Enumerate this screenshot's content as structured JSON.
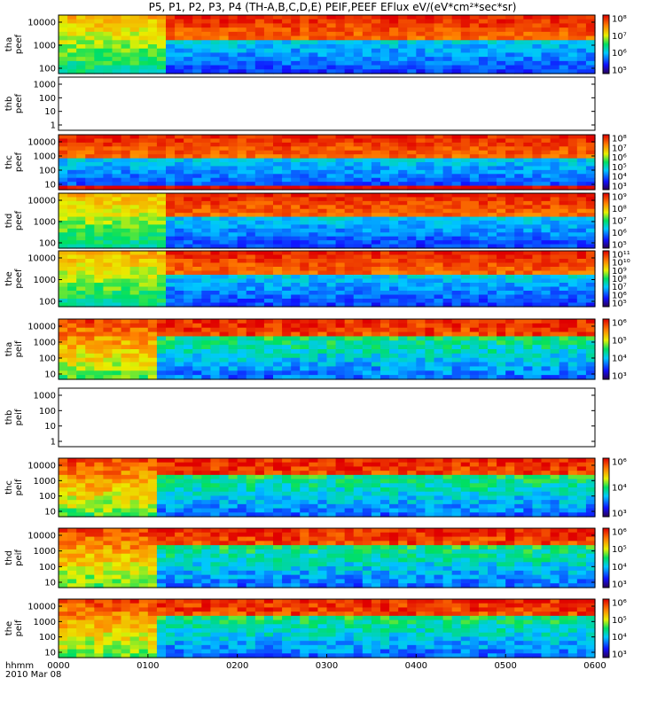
{
  "title": "P5, P1, P2, P3, P4 (TH-A,B,C,D,E) PEIF,PEEF EFlux eV/(eV*cm²*sec*sr)",
  "footer": {
    "time_label": "hhmm",
    "date_label": "2010 Mar 08"
  },
  "chart_data": {
    "type": "heatmap",
    "x_axis": {
      "label": "hhmm",
      "ticks": [
        "0000",
        "0100",
        "0200",
        "0300",
        "0400",
        "0500",
        "0600"
      ],
      "range": [
        "0000",
        "0600"
      ]
    },
    "panels": [
      {
        "name": "tha_peef",
        "ylabel": [
          "tha",
          "peef"
        ],
        "yticks": [
          "10000",
          "1000",
          "100"
        ],
        "colorbar": [
          "10⁸",
          "10⁷",
          "10⁶",
          "10⁵"
        ],
        "empty": false
      },
      {
        "name": "thb_peef",
        "ylabel": [
          "thb",
          "peef"
        ],
        "yticks": [
          "1000",
          "100",
          "10",
          "1"
        ],
        "colorbar": [],
        "empty": true
      },
      {
        "name": "thc_peef",
        "ylabel": [
          "thc",
          "peef"
        ],
        "yticks": [
          "10000",
          "1000",
          "100",
          "10"
        ],
        "colorbar": [
          "10⁸",
          "10⁷",
          "10⁶",
          "10⁵",
          "10⁴",
          "10³"
        ],
        "empty": false
      },
      {
        "name": "thd_peef",
        "ylabel": [
          "thd",
          "peef"
        ],
        "yticks": [
          "10000",
          "1000",
          "100"
        ],
        "colorbar": [
          "10⁹",
          "10⁸",
          "10⁷",
          "10⁶",
          "10⁵"
        ],
        "empty": false
      },
      {
        "name": "the_peef",
        "ylabel": [
          "the",
          "peef"
        ],
        "yticks": [
          "10000",
          "1000",
          "100"
        ],
        "colorbar": [
          "10¹¹",
          "10¹⁰",
          "10⁹",
          "10⁸",
          "10⁷",
          "10⁶",
          "10⁵"
        ],
        "empty": false
      },
      {
        "name": "tha_peif",
        "ylabel": [
          "tha",
          "peif"
        ],
        "yticks": [
          "10000",
          "1000",
          "100",
          "10"
        ],
        "colorbar": [
          "10⁶",
          "10⁵",
          "10⁴",
          "10³"
        ],
        "empty": false
      },
      {
        "name": "thb_peif",
        "ylabel": [
          "thb",
          "peif"
        ],
        "yticks": [
          "1000",
          "100",
          "10",
          "1"
        ],
        "colorbar": [],
        "empty": true
      },
      {
        "name": "thc_peif",
        "ylabel": [
          "thc",
          "peif"
        ],
        "yticks": [
          "10000",
          "1000",
          "100",
          "10"
        ],
        "colorbar": [
          "10⁶",
          "10⁴",
          "10³"
        ],
        "empty": false
      },
      {
        "name": "thd_peif",
        "ylabel": [
          "thd",
          "peif"
        ],
        "yticks": [
          "10000",
          "1000",
          "100",
          "10"
        ],
        "colorbar": [
          "10⁶",
          "10⁵",
          "10⁴",
          "10³"
        ],
        "empty": false
      },
      {
        "name": "the_peif",
        "ylabel": [
          "the",
          "peif"
        ],
        "yticks": [
          "10000",
          "1000",
          "100",
          "10"
        ],
        "colorbar": [
          "10⁶",
          "10⁵",
          "10⁴",
          "10³"
        ],
        "empty": false
      }
    ]
  }
}
